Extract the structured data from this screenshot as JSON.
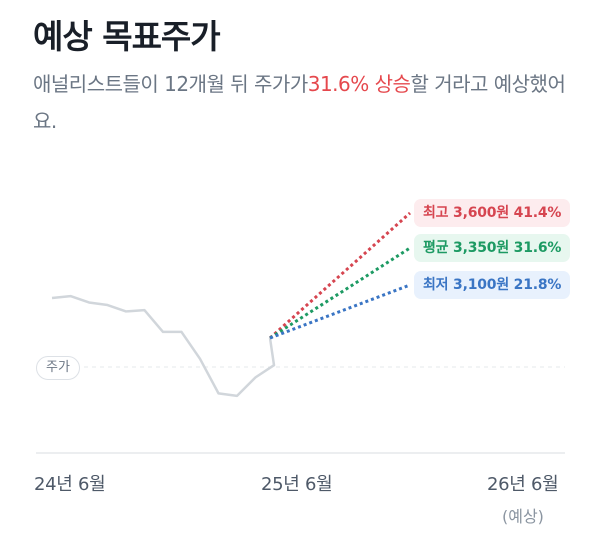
{
  "header": {
    "title": "예상 목표주가",
    "subtitle_before": "애널리스트들이 12개월 뒤 주가가",
    "subtitle_highlight": "31.6% 상승",
    "subtitle_after": "할 거라고 예상했어요."
  },
  "chart": {
    "current_label": "주가",
    "targets": [
      {
        "key": "high",
        "label": "최고 3,600원 41.4%",
        "color": "#d64550"
      },
      {
        "key": "avg",
        "label": "평균 3,350원 31.6%",
        "color": "#1d9a63"
      },
      {
        "key": "low",
        "label": "최저 3,100원 21.8%",
        "color": "#3a75c4"
      }
    ],
    "x_labels": [
      "24년 6월",
      "25년 6월",
      "26년 6월"
    ],
    "x_sublabel": "(예상)",
    "colors": {
      "history_line": "#d1d6db",
      "baseline": "#e5e8eb",
      "accent_red": "#e5484d"
    }
  },
  "chart_data": {
    "type": "line",
    "history_series": [
      {
        "idx": 0,
        "rel": 0.0
      },
      {
        "idx": 1,
        "rel": 0.3
      },
      {
        "idx": 2,
        "rel": -0.7
      },
      {
        "idx": 3,
        "rel": -1.1
      },
      {
        "idx": 4,
        "rel": -2.1
      },
      {
        "idx": 5,
        "rel": -1.9
      },
      {
        "idx": 6,
        "rel": -5.3
      },
      {
        "idx": 7,
        "rel": -5.3
      },
      {
        "idx": 8,
        "rel": -9.5
      },
      {
        "idx": 9,
        "rel": -14.9
      },
      {
        "idx": 10,
        "rel": -15.3
      },
      {
        "idx": 11,
        "rel": -12.4
      },
      {
        "idx": 12,
        "rel": -10.5
      }
    ],
    "targets_pct": [
      41.4,
      31.6,
      21.8
    ],
    "target_prices": [
      3600,
      3350,
      3100
    ]
  }
}
